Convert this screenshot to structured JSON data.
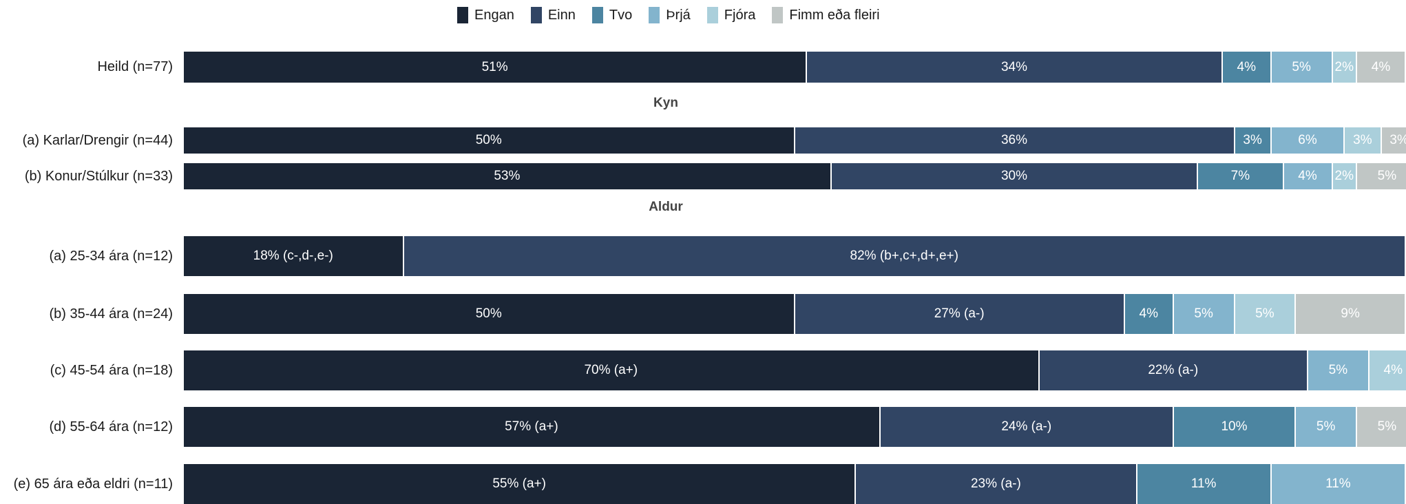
{
  "chart_data": {
    "type": "bar",
    "orientation": "horizontal",
    "stacked": true,
    "legend_position": "top",
    "grid": false,
    "legend": [
      "Engan",
      "Einn",
      "Tvo",
      "Þrjá",
      "Fjóra",
      "Fimm eða fleiri"
    ],
    "colors": [
      "#1a2535",
      "#314564",
      "#4c85a1",
      "#83b4cd",
      "#aacfdb",
      "#c0c6c5"
    ],
    "groups": [
      {
        "header": "",
        "rows": [
          {
            "label": "Heild (n=77)",
            "values": [
              51,
              34,
              4,
              5,
              2,
              4
            ],
            "labels": [
              "51%",
              "34%",
              "4%",
              "5%",
              "2%",
              "4%"
            ]
          }
        ]
      },
      {
        "header": "Kyn",
        "rows": [
          {
            "label": "(a) Karlar/Drengir (n=44)",
            "values": [
              50,
              36,
              3,
              6,
              3,
              3
            ],
            "labels": [
              "50%",
              "36%",
              "3%",
              "6%",
              "3%",
              "3%"
            ]
          },
          {
            "label": "(b) Konur/Stúlkur (n=33)",
            "values": [
              53,
              30,
              7,
              4,
              2,
              5
            ],
            "labels": [
              "53%",
              "30%",
              "7%",
              "4%",
              "2%",
              "5%"
            ]
          }
        ]
      },
      {
        "header": "Aldur",
        "rows": [
          {
            "label": "(a) 25-34 ára (n=12)",
            "values": [
              18,
              82,
              0,
              0,
              0,
              0
            ],
            "labels": [
              "18% (c-,d-,e-)",
              "82% (b+,c+,d+,e+)",
              "",
              "",
              "",
              ""
            ]
          },
          {
            "label": "(b) 35-44 ára (n=24)",
            "values": [
              50,
              27,
              4,
              5,
              5,
              9
            ],
            "labels": [
              "50%",
              "27% (a-)",
              "4%",
              "5%",
              "5%",
              "9%"
            ]
          },
          {
            "label": "(c) 45-54 ára (n=18)",
            "values": [
              70,
              22,
              0,
              5,
              4,
              0
            ],
            "labels": [
              "70% (a+)",
              "22% (a-)",
              "",
              "5%",
              "4%",
              ""
            ]
          },
          {
            "label": "(d) 55-64 ára (n=12)",
            "values": [
              57,
              24,
              10,
              5,
              0,
              5
            ],
            "labels": [
              "57% (a+)",
              "24% (a-)",
              "10%",
              "5%",
              "",
              "5%"
            ]
          },
          {
            "label": "(e) 65 ára eða eldri (n=11)",
            "values": [
              55,
              23,
              11,
              11,
              0,
              0
            ],
            "labels": [
              "55% (a+)",
              "23% (a-)",
              "11%",
              "11%",
              "",
              ""
            ]
          }
        ]
      }
    ]
  }
}
